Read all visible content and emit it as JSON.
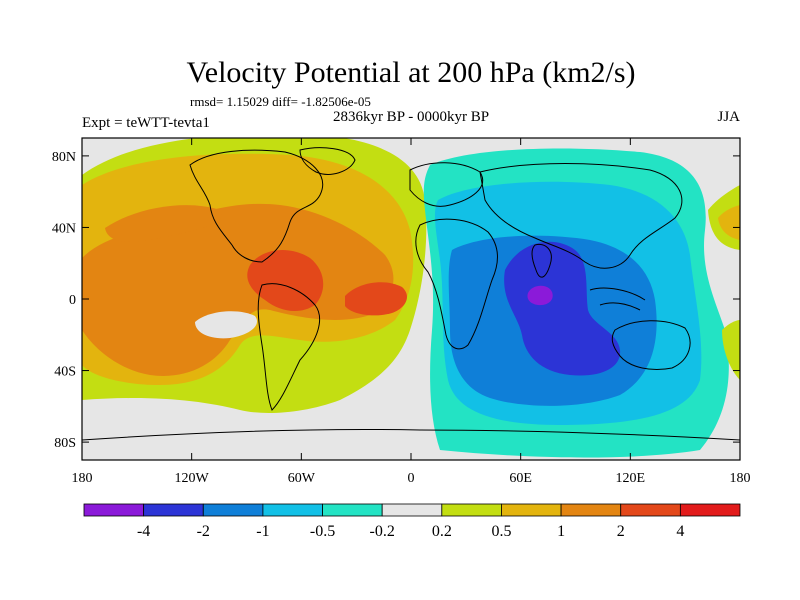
{
  "chart_data": {
    "type": "heatmap",
    "title": "Velocity Potential at 200 hPa (km2/s)",
    "subtitle_stats": "rmsd= 1.15029 diff= -1.82506e-05",
    "subtitle_period": "2836kyr BP - 0000kyr BP",
    "left_label": "Expt = teWTT-tevta1",
    "right_label": "JJA",
    "x_ticks": [
      "180",
      "120W",
      "60W",
      "0",
      "60E",
      "120E",
      "180"
    ],
    "x_values": [
      -180,
      -120,
      -60,
      0,
      60,
      120,
      180
    ],
    "y_ticks": [
      "80N",
      "40N",
      "0",
      "40S",
      "80S"
    ],
    "y_values": [
      80,
      40,
      0,
      -40,
      -80
    ],
    "xlim": [
      -180,
      180
    ],
    "ylim": [
      -90,
      90
    ],
    "colorbar_labels": [
      "-4",
      "-2",
      "-1",
      "-0.5",
      "-0.2",
      "0.2",
      "0.5",
      "1",
      "2",
      "4"
    ],
    "colorbar_levels": [
      -4,
      -2,
      -1,
      -0.5,
      -0.2,
      0.2,
      0.5,
      1,
      2,
      4
    ],
    "colorbar_colors": [
      "#8b1ad9",
      "#2c34d6",
      "#0f7fd8",
      "#12c0e6",
      "#23e3c4",
      "#e6e6e6",
      "#c3de12",
      "#e3b40e",
      "#e38512",
      "#e3481a",
      "#e21b1b"
    ]
  }
}
